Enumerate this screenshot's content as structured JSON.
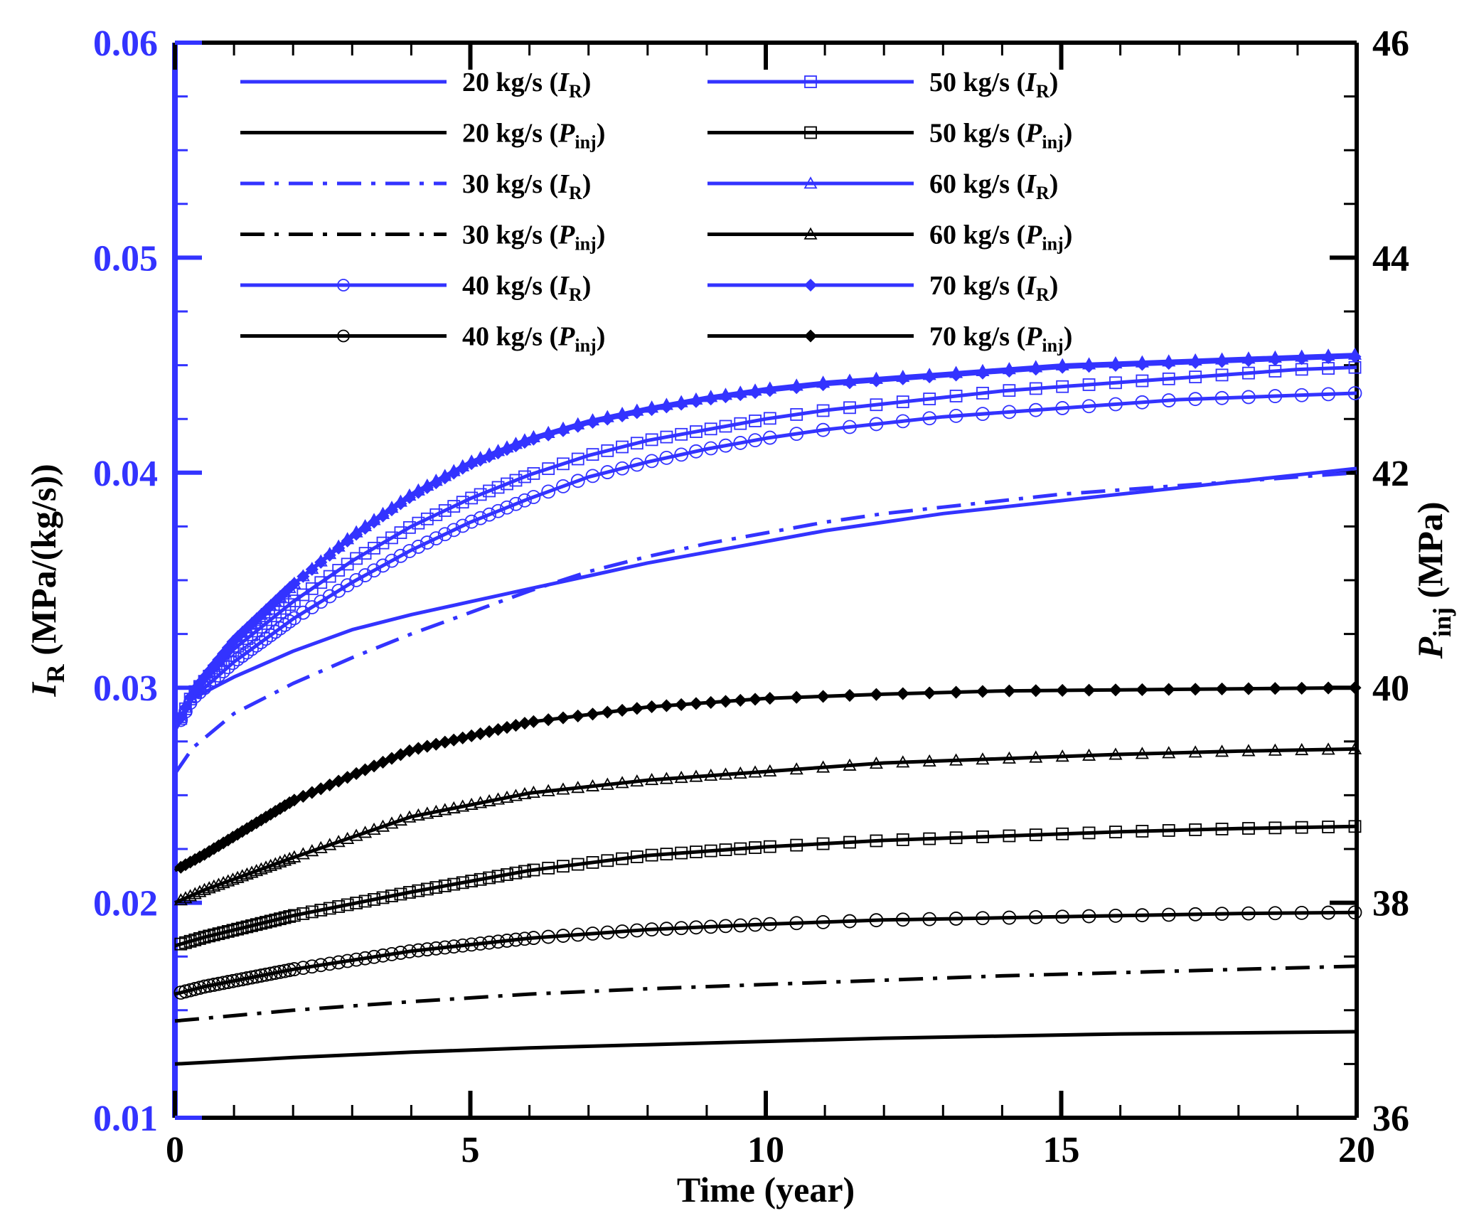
{
  "chart_data": {
    "type": "line",
    "xlabel": "Time (year)",
    "ylabel_left": {
      "symbol": "I",
      "sub": "R",
      "unit": " (MPa/(kg/s))"
    },
    "ylabel_right": {
      "symbol": "P",
      "sub": "inj",
      "unit": " (MPa)"
    },
    "xlim": [
      0,
      20
    ],
    "ylim_left": [
      0.01,
      0.06
    ],
    "ylim_right": [
      36,
      46
    ],
    "x_ticks": [
      "0",
      "5",
      "10",
      "15",
      "20"
    ],
    "y_left_ticks": [
      "0.01",
      "0.02",
      "0.03",
      "0.04",
      "0.05",
      "0.06"
    ],
    "y_right_ticks": [
      "36",
      "38",
      "40",
      "42",
      "44",
      "46"
    ],
    "colors": {
      "ir": "#3333ff",
      "pinj": "#000000"
    },
    "series": [
      {
        "name": "20 kg/s (I_R)",
        "rate": "20 kg/s",
        "sym": "I",
        "sub": "R",
        "axis": "left",
        "color": "#3333ff",
        "dash": "solid",
        "marker": "none",
        "x": [
          0,
          0.3,
          1,
          2,
          3,
          4,
          5,
          6,
          7,
          8,
          9,
          10,
          11,
          12,
          13,
          14,
          15,
          16,
          17,
          18,
          19,
          20
        ],
        "values": [
          0.028,
          0.0295,
          0.0305,
          0.0317,
          0.0327,
          0.0334,
          0.034,
          0.0346,
          0.0352,
          0.0358,
          0.0363,
          0.0368,
          0.0373,
          0.0377,
          0.0381,
          0.0384,
          0.0387,
          0.039,
          0.0393,
          0.0396,
          0.0399,
          0.0402
        ]
      },
      {
        "name": "20 kg/s (P_inj)",
        "rate": "20 kg/s",
        "sym": "P",
        "sub": "inj",
        "axis": "right",
        "color": "#000000",
        "dash": "solid",
        "marker": "none",
        "x": [
          0,
          2,
          4,
          6,
          8,
          10,
          12,
          14,
          16,
          18,
          20
        ],
        "values": [
          36.5,
          36.56,
          36.61,
          36.65,
          36.68,
          36.71,
          36.74,
          36.76,
          36.78,
          36.79,
          36.8
        ]
      },
      {
        "name": "30 kg/s (I_R)",
        "rate": "30 kg/s",
        "sym": "I",
        "sub": "R",
        "axis": "left",
        "color": "#3333ff",
        "dash": "dashdot",
        "marker": "none",
        "x": [
          0,
          0.3,
          1,
          2,
          3,
          4,
          5,
          6,
          7,
          8,
          9,
          10,
          11,
          12,
          13,
          14,
          15,
          16,
          17,
          18,
          19,
          20
        ],
        "values": [
          0.026,
          0.0272,
          0.0288,
          0.0302,
          0.0314,
          0.0325,
          0.0335,
          0.0345,
          0.0354,
          0.0361,
          0.0367,
          0.0372,
          0.0377,
          0.0381,
          0.0384,
          0.0387,
          0.039,
          0.0392,
          0.0394,
          0.0396,
          0.0398,
          0.04
        ]
      },
      {
        "name": "30 kg/s (P_inj)",
        "rate": "30 kg/s",
        "sym": "P",
        "sub": "inj",
        "axis": "right",
        "color": "#000000",
        "dash": "dashdot",
        "marker": "none",
        "x": [
          0,
          2,
          4,
          6,
          8,
          10,
          12,
          14,
          16,
          18,
          20
        ],
        "values": [
          36.9,
          37.0,
          37.08,
          37.15,
          37.2,
          37.24,
          37.28,
          37.32,
          37.35,
          37.38,
          37.41
        ]
      },
      {
        "name": "40 kg/s (I_R)",
        "rate": "40 kg/s",
        "sym": "I",
        "sub": "R",
        "axis": "left",
        "color": "#3333ff",
        "dash": "solid",
        "marker": "circle",
        "x": [
          0,
          0.3,
          1,
          2,
          3,
          4,
          5,
          6,
          7,
          8,
          9,
          10,
          11,
          12,
          13,
          14,
          15,
          16,
          17,
          18,
          19,
          20
        ],
        "values": [
          0.028,
          0.0295,
          0.0312,
          0.0332,
          0.0349,
          0.0364,
          0.0377,
          0.0388,
          0.0398,
          0.0405,
          0.0411,
          0.0416,
          0.042,
          0.0423,
          0.0426,
          0.0428,
          0.043,
          0.0432,
          0.0434,
          0.0435,
          0.0436,
          0.0437
        ]
      },
      {
        "name": "40 kg/s (P_inj)",
        "rate": "40 kg/s",
        "sym": "P",
        "sub": "inj",
        "axis": "right",
        "color": "#000000",
        "dash": "solid",
        "marker": "circle",
        "x": [
          0,
          0.5,
          2,
          4,
          6,
          8,
          10,
          12,
          14,
          16,
          18,
          20
        ],
        "values": [
          37.15,
          37.22,
          37.38,
          37.55,
          37.67,
          37.75,
          37.8,
          37.84,
          37.86,
          37.88,
          37.9,
          37.91
        ]
      },
      {
        "name": "50 kg/s (I_R)",
        "rate": "50 kg/s",
        "sym": "I",
        "sub": "R",
        "axis": "left",
        "color": "#3333ff",
        "dash": "solid",
        "marker": "square",
        "x": [
          0,
          0.3,
          1,
          2,
          3,
          4,
          5,
          6,
          7,
          8,
          9,
          10,
          11,
          12,
          13,
          14,
          15,
          16,
          17,
          18,
          19,
          20
        ],
        "values": [
          0.028,
          0.0297,
          0.0318,
          0.034,
          0.0359,
          0.0375,
          0.0388,
          0.0399,
          0.0408,
          0.0415,
          0.042,
          0.0425,
          0.0429,
          0.0432,
          0.0435,
          0.0438,
          0.044,
          0.0442,
          0.0444,
          0.0446,
          0.0448,
          0.0449
        ]
      },
      {
        "name": "50 kg/s (P_inj)",
        "rate": "50 kg/s",
        "sym": "P",
        "sub": "inj",
        "axis": "right",
        "color": "#000000",
        "dash": "solid",
        "marker": "square",
        "x": [
          0,
          0.5,
          2,
          4,
          6,
          8,
          10,
          12,
          14,
          16,
          18,
          20
        ],
        "values": [
          37.6,
          37.68,
          37.88,
          38.1,
          38.3,
          38.44,
          38.52,
          38.58,
          38.62,
          38.66,
          38.69,
          38.71
        ]
      },
      {
        "name": "60 kg/s (I_R)",
        "rate": "60 kg/s",
        "sym": "I",
        "sub": "R",
        "axis": "left",
        "color": "#3333ff",
        "dash": "solid",
        "marker": "triangle",
        "x": [
          0,
          0.3,
          1,
          2,
          3,
          4,
          5,
          6,
          7,
          8,
          9,
          10,
          11,
          12,
          13,
          14,
          15,
          16,
          17,
          18,
          19,
          20
        ],
        "values": [
          0.028,
          0.0298,
          0.0322,
          0.0348,
          0.0371,
          0.039,
          0.0405,
          0.0416,
          0.0424,
          0.043,
          0.0435,
          0.0439,
          0.0442,
          0.0444,
          0.0446,
          0.0448,
          0.045,
          0.0451,
          0.0452,
          0.0453,
          0.0454,
          0.0455
        ]
      },
      {
        "name": "60 kg/s (P_inj)",
        "rate": "60 kg/s",
        "sym": "P",
        "sub": "inj",
        "axis": "right",
        "color": "#000000",
        "dash": "solid",
        "marker": "triangle",
        "x": [
          0,
          0.5,
          2,
          4,
          6,
          8,
          10,
          12,
          14,
          16,
          18,
          20
        ],
        "values": [
          38.0,
          38.12,
          38.42,
          38.8,
          39.02,
          39.14,
          39.22,
          39.3,
          39.34,
          39.38,
          39.41,
          39.43
        ]
      },
      {
        "name": "70 kg/s (I_R)",
        "rate": "70 kg/s",
        "sym": "I",
        "sub": "R",
        "axis": "left",
        "color": "#3333ff",
        "dash": "solid",
        "marker": "diamond",
        "x": [
          0,
          0.3,
          1,
          2,
          3,
          4,
          5,
          6,
          7,
          8,
          9,
          10,
          11,
          12,
          13,
          14,
          15,
          16,
          17,
          18,
          19,
          20
        ],
        "values": [
          0.028,
          0.0298,
          0.0322,
          0.0348,
          0.037,
          0.0389,
          0.0404,
          0.0415,
          0.0423,
          0.0429,
          0.0434,
          0.0438,
          0.0441,
          0.0443,
          0.0445,
          0.0447,
          0.0449,
          0.045,
          0.0451,
          0.0452,
          0.0453,
          0.0454
        ]
      },
      {
        "name": "70 kg/s (P_inj)",
        "rate": "70 kg/s",
        "sym": "P",
        "sub": "inj",
        "axis": "right",
        "color": "#000000",
        "dash": "solid",
        "marker": "diamond",
        "x": [
          0,
          0.5,
          2,
          4,
          6,
          8,
          10,
          12,
          14,
          16,
          18,
          20
        ],
        "values": [
          38.3,
          38.45,
          38.95,
          39.42,
          39.68,
          39.82,
          39.9,
          39.94,
          39.97,
          39.98,
          39.99,
          40.0
        ]
      }
    ],
    "legend_position": "top, two columns"
  }
}
